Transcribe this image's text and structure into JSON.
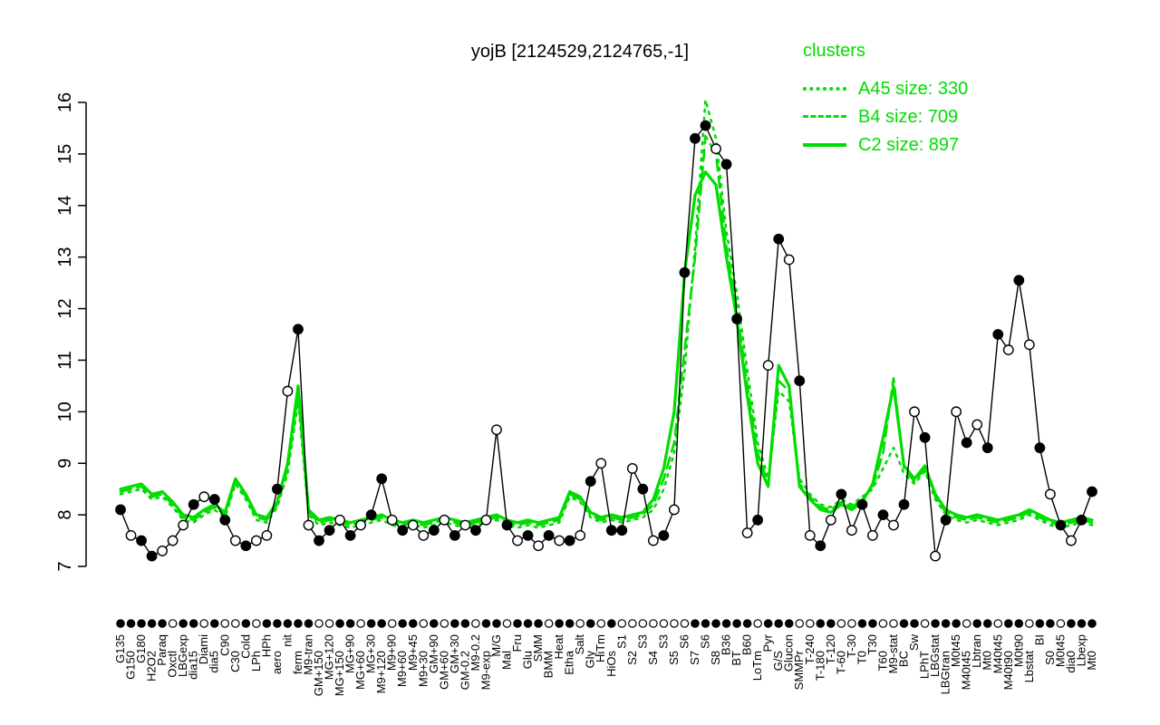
{
  "title": "yojB [2124529,2124765,-1]",
  "legend": {
    "header": "clusters",
    "entries": [
      {
        "label": "A45 size: 330",
        "style": "dotted"
      },
      {
        "label": "B4 size: 709",
        "style": "dashed"
      },
      {
        "label": "C2 size: 897",
        "style": "solid"
      }
    ]
  },
  "colors": {
    "cluster": "#00DD00",
    "gene": "#000000",
    "background": "#ffffff"
  },
  "chart_data": {
    "type": "line",
    "title": "yojB [2124529,2124765,-1]",
    "ylabel": "",
    "xlabel": "",
    "ylim": [
      7,
      16
    ],
    "yticks": [
      7,
      8,
      9,
      10,
      11,
      12,
      13,
      14,
      15,
      16
    ],
    "grid": false,
    "legend_position": "top-right",
    "categories": [
      "G135",
      "G150",
      "G180",
      "H2O2",
      "Paraq",
      "Oxctl",
      "LBGexp",
      "dia15",
      "Diami",
      "dia5",
      "C90",
      "C30",
      "Cold",
      "LPh",
      "HPh",
      "aero",
      "nit",
      "ferm",
      "M9-tran",
      "GM+150",
      "MG+120",
      "MG+150",
      "MG+90",
      "MG+60",
      "MG+30",
      "M9+120",
      "M9+90",
      "M9+60",
      "M9+45",
      "M9+30",
      "GM+90",
      "GM+60",
      "GM+30",
      "GM-0.2",
      "M9-0.2",
      "M9-exp",
      "M/G",
      "Mal",
      "Fru",
      "Glu",
      "SMM",
      "BMM",
      "Heat",
      "Etha",
      "Salt",
      "Gly",
      "HiTm",
      "HiOs",
      "S1",
      "S2",
      "S3",
      "S4",
      "S3",
      "S5",
      "S6",
      "S7",
      "S6",
      "S8",
      "B36",
      "BT",
      "B60",
      "LoTm",
      "Pyr",
      "G/S",
      "Glucon",
      "SMMPr",
      "T-240",
      "T-180",
      "T-120",
      "T-60",
      "T-30",
      "T0",
      "T30",
      "T60",
      "M9-stat",
      "BC",
      "Sw",
      "LPhT",
      "LBGstat",
      "LBGtran",
      "M0t45",
      "M40t45",
      "Lbtran",
      "Mt0",
      "M40t45",
      "M40t90",
      "M0t90",
      "Lbstat",
      "BI",
      "S0",
      "M0t45",
      "dia0",
      "Lbexp",
      "Mt0"
    ],
    "gene_series": {
      "name": "yojB",
      "values": [
        8.1,
        7.6,
        7.5,
        7.2,
        7.3,
        7.5,
        7.8,
        8.2,
        8.35,
        8.3,
        7.9,
        7.5,
        7.4,
        7.5,
        7.6,
        8.5,
        10.4,
        11.6,
        7.8,
        7.5,
        7.7,
        7.9,
        7.6,
        7.8,
        8.0,
        8.7,
        7.9,
        7.7,
        7.8,
        7.6,
        7.7,
        7.9,
        7.6,
        7.8,
        7.7,
        7.9,
        9.65,
        7.8,
        7.5,
        7.6,
        7.4,
        7.6,
        7.5,
        7.5,
        7.6,
        8.65,
        9.0,
        7.7,
        7.7,
        8.9,
        8.5,
        7.5,
        7.6,
        8.1,
        12.7,
        15.3,
        15.55,
        15.1,
        14.8,
        11.8,
        7.65,
        7.9,
        10.9,
        13.35,
        12.95,
        10.6,
        7.6,
        7.4,
        7.9,
        8.4,
        7.7,
        8.2,
        7.6,
        8.0,
        7.8,
        8.2,
        10.0,
        9.5,
        7.2,
        7.9,
        10.0,
        9.4,
        9.75,
        9.3,
        11.5,
        11.2,
        12.55,
        11.3,
        9.3,
        8.4,
        7.8,
        7.5,
        7.9,
        8.45
      ],
      "marker_fill": [
        "f",
        "o",
        "f",
        "f",
        "o",
        "o",
        "o",
        "f",
        "o",
        "f",
        "f",
        "o",
        "f",
        "o",
        "o",
        "f",
        "o",
        "f",
        "o",
        "f",
        "f",
        "o",
        "f",
        "o",
        "f",
        "f",
        "o",
        "f",
        "o",
        "o",
        "f",
        "o",
        "f",
        "o",
        "f",
        "o",
        "o",
        "f",
        "o",
        "f",
        "o",
        "f",
        "o",
        "f",
        "o",
        "f",
        "o",
        "f",
        "f",
        "o",
        "f",
        "o",
        "f",
        "o",
        "f",
        "f",
        "f",
        "o",
        "f",
        "f",
        "o",
        "f",
        "o",
        "f",
        "o",
        "f",
        "o",
        "f",
        "o",
        "f",
        "o",
        "f",
        "o",
        "f",
        "o",
        "f",
        "o",
        "f",
        "o",
        "f",
        "o",
        "f",
        "o",
        "f",
        "f",
        "o",
        "f",
        "o",
        "f",
        "o",
        "f",
        "o",
        "f",
        "f"
      ]
    },
    "cluster_series": [
      {
        "name": "A45 size: 330",
        "dash": "dotted",
        "size": 330,
        "values": [
          8.4,
          8.45,
          8.5,
          8.3,
          8.35,
          8.15,
          7.9,
          7.85,
          8.0,
          8.1,
          7.95,
          8.6,
          8.3,
          7.9,
          7.85,
          8.15,
          8.8,
          10.2,
          8.0,
          7.8,
          7.85,
          7.8,
          7.75,
          7.8,
          7.85,
          7.9,
          7.8,
          7.75,
          7.8,
          7.75,
          7.8,
          7.85,
          7.8,
          7.75,
          7.8,
          7.85,
          7.9,
          7.8,
          7.75,
          7.8,
          7.75,
          7.8,
          7.85,
          8.35,
          8.25,
          7.95,
          7.85,
          7.9,
          7.85,
          7.9,
          7.95,
          8.1,
          8.5,
          9.2,
          10.8,
          13.2,
          16.05,
          15.3,
          13.5,
          12.3,
          10.8,
          9.4,
          8.7,
          10.4,
          10.2,
          8.7,
          8.4,
          8.2,
          8.15,
          8.3,
          8.2,
          8.35,
          8.5,
          8.9,
          9.3,
          8.8,
          8.6,
          8.85,
          8.3,
          8.0,
          7.9,
          7.85,
          7.9,
          7.85,
          7.8,
          7.85,
          7.9,
          8.0,
          7.9,
          7.8,
          7.75,
          7.8,
          7.85,
          7.8
        ]
      },
      {
        "name": "B4 size: 709",
        "dash": "dashed",
        "size": 709,
        "values": [
          8.45,
          8.5,
          8.55,
          8.35,
          8.4,
          8.2,
          7.95,
          7.9,
          8.05,
          8.15,
          8.0,
          8.65,
          8.35,
          7.95,
          7.9,
          8.2,
          8.9,
          10.35,
          8.05,
          7.85,
          7.9,
          7.85,
          7.8,
          7.85,
          7.9,
          7.95,
          7.85,
          7.8,
          7.85,
          7.8,
          7.85,
          7.9,
          7.85,
          7.8,
          7.85,
          7.9,
          7.95,
          7.85,
          7.8,
          7.85,
          7.8,
          7.85,
          7.9,
          8.4,
          8.3,
          8.0,
          7.9,
          7.95,
          7.9,
          7.95,
          8.0,
          8.2,
          8.7,
          9.4,
          11.2,
          13.0,
          15.35,
          15.0,
          13.2,
          12.0,
          10.5,
          9.2,
          8.6,
          10.6,
          10.4,
          8.6,
          8.35,
          8.15,
          8.1,
          8.25,
          8.15,
          8.3,
          8.55,
          9.2,
          10.65,
          8.9,
          8.65,
          8.9,
          8.35,
          8.05,
          7.95,
          7.9,
          7.95,
          7.9,
          7.85,
          7.9,
          7.95,
          8.05,
          7.95,
          7.85,
          7.8,
          7.85,
          7.9,
          7.85
        ]
      },
      {
        "name": "C2 size: 897",
        "dash": "solid",
        "size": 897,
        "values": [
          8.5,
          8.55,
          8.6,
          8.4,
          8.45,
          8.25,
          8.0,
          7.95,
          8.1,
          8.2,
          8.05,
          8.7,
          8.4,
          8.0,
          7.95,
          8.25,
          9.0,
          10.5,
          8.1,
          7.9,
          7.95,
          7.9,
          7.85,
          7.9,
          7.95,
          8.0,
          7.9,
          7.85,
          7.9,
          7.85,
          7.9,
          7.95,
          7.9,
          7.85,
          7.9,
          7.95,
          8.0,
          7.9,
          7.85,
          7.9,
          7.85,
          7.9,
          7.95,
          8.45,
          8.35,
          8.05,
          7.95,
          8.0,
          7.95,
          8.0,
          8.05,
          8.3,
          8.9,
          10.0,
          12.7,
          14.2,
          14.65,
          14.4,
          13.0,
          11.8,
          10.3,
          9.0,
          8.55,
          10.9,
          10.5,
          8.55,
          8.3,
          8.1,
          8.05,
          8.2,
          8.1,
          8.25,
          8.6,
          9.5,
          10.5,
          8.95,
          8.7,
          8.95,
          8.4,
          8.1,
          8.0,
          7.95,
          8.0,
          7.95,
          7.9,
          7.95,
          8.0,
          8.1,
          8.0,
          7.9,
          7.85,
          7.9,
          7.95,
          7.9
        ]
      }
    ],
    "axis_markers": [
      "f",
      "f",
      "f",
      "f",
      "f",
      "o",
      "f",
      "f",
      "o",
      "f",
      "o",
      "o",
      "f",
      "o",
      "f",
      "f",
      "f",
      "f",
      "f",
      "o",
      "o",
      "f",
      "f",
      "o",
      "f",
      "f",
      "o",
      "f",
      "f",
      "o",
      "f",
      "o",
      "f",
      "f",
      "o",
      "f",
      "f",
      "o",
      "f",
      "f",
      "f",
      "o",
      "f",
      "f",
      "o",
      "f",
      "o",
      "f",
      "o",
      "o",
      "o",
      "o",
      "o",
      "o",
      "o",
      "f",
      "f",
      "f",
      "f",
      "f",
      "f",
      "o",
      "f",
      "f",
      "f",
      "o",
      "o",
      "f",
      "f",
      "o",
      "o",
      "f",
      "f",
      "o",
      "o",
      "f",
      "f",
      "o",
      "f",
      "f",
      "f",
      "o",
      "f",
      "f",
      "o",
      "f",
      "f",
      "o",
      "f",
      "f",
      "o",
      "f",
      "f",
      "f"
    ]
  }
}
